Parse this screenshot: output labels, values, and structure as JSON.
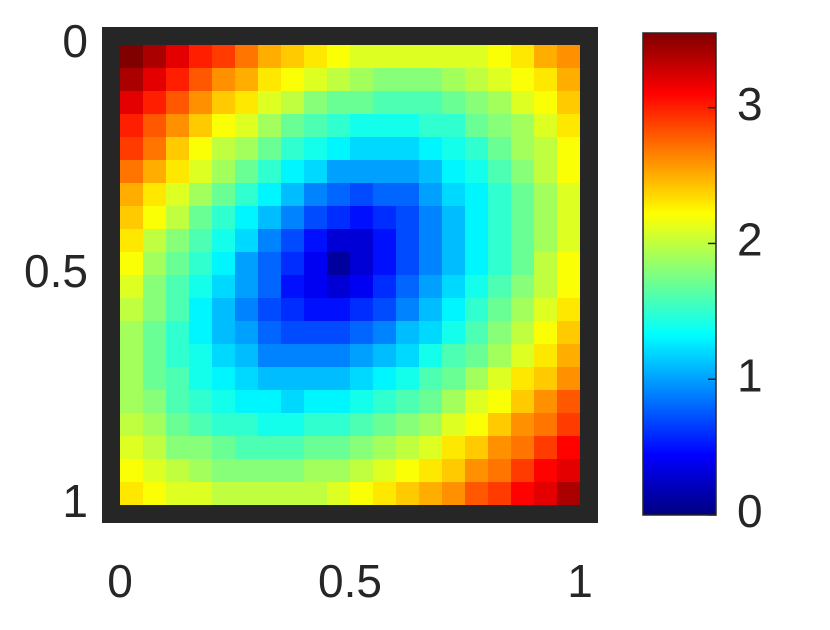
{
  "chart_data": {
    "type": "heatmap",
    "colormap": "jet",
    "ydir": "reverse",
    "xlim": [
      0,
      1
    ],
    "xticks": [
      0,
      0.5,
      1
    ],
    "ylim": [
      0,
      1
    ],
    "yticks": [
      0,
      0.5,
      1
    ],
    "clim": [
      0,
      3.55
    ],
    "cticks": [
      0,
      1,
      2,
      3
    ],
    "z": [
      [
        3.6,
        3.4,
        3.2,
        3.0,
        2.9,
        2.7,
        2.5,
        2.4,
        2.3,
        2.2,
        2.1,
        2.1,
        2.1,
        2.1,
        2.1,
        2.1,
        2.2,
        2.3,
        2.5,
        2.6
      ],
      [
        3.4,
        3.2,
        3.0,
        2.8,
        2.6,
        2.5,
        2.3,
        2.2,
        2.1,
        2.0,
        1.9,
        1.8,
        1.8,
        1.8,
        1.9,
        2.0,
        2.1,
        2.2,
        2.3,
        2.5
      ],
      [
        3.2,
        3.0,
        2.8,
        2.6,
        2.4,
        2.3,
        2.1,
        2.0,
        1.8,
        1.7,
        1.7,
        1.6,
        1.6,
        1.6,
        1.7,
        1.8,
        1.9,
        2.1,
        2.2,
        2.4
      ],
      [
        3.0,
        2.8,
        2.6,
        2.4,
        2.2,
        2.1,
        1.9,
        1.7,
        1.6,
        1.5,
        1.4,
        1.4,
        1.4,
        1.5,
        1.5,
        1.7,
        1.8,
        1.9,
        2.1,
        2.3
      ],
      [
        2.9,
        2.7,
        2.4,
        2.2,
        2.0,
        1.9,
        1.7,
        1.5,
        1.4,
        1.3,
        1.2,
        1.2,
        1.2,
        1.3,
        1.4,
        1.5,
        1.7,
        1.9,
        2.0,
        2.2
      ],
      [
        2.7,
        2.5,
        2.3,
        2.1,
        1.9,
        1.7,
        1.5,
        1.3,
        1.2,
        1.0,
        1.0,
        1.0,
        1.0,
        1.1,
        1.3,
        1.4,
        1.6,
        1.8,
        2.0,
        2.2
      ],
      [
        2.5,
        2.3,
        2.1,
        1.9,
        1.7,
        1.5,
        1.3,
        1.1,
        0.9,
        0.8,
        0.7,
        0.8,
        0.8,
        1.0,
        1.2,
        1.3,
        1.5,
        1.7,
        1.9,
        2.1
      ],
      [
        2.4,
        2.2,
        2.0,
        1.7,
        1.5,
        1.3,
        1.1,
        0.9,
        0.7,
        0.6,
        0.5,
        0.6,
        0.7,
        0.9,
        1.1,
        1.3,
        1.5,
        1.7,
        1.9,
        2.1
      ],
      [
        2.3,
        2.0,
        1.8,
        1.6,
        1.4,
        1.2,
        0.9,
        0.7,
        0.5,
        0.3,
        0.3,
        0.5,
        0.7,
        0.9,
        1.1,
        1.3,
        1.5,
        1.7,
        1.9,
        2.1
      ],
      [
        2.2,
        1.9,
        1.7,
        1.5,
        1.3,
        1.0,
        0.8,
        0.6,
        0.4,
        0.1,
        0.3,
        0.5,
        0.7,
        0.9,
        1.1,
        1.3,
        1.5,
        1.7,
        2.0,
        2.2
      ],
      [
        2.1,
        1.8,
        1.6,
        1.4,
        1.2,
        1.0,
        0.8,
        0.5,
        0.4,
        0.3,
        0.4,
        0.6,
        0.8,
        1.0,
        1.2,
        1.4,
        1.6,
        1.8,
        2.0,
        2.2
      ],
      [
        2.0,
        1.8,
        1.6,
        1.3,
        1.1,
        0.9,
        0.7,
        0.6,
        0.5,
        0.5,
        0.6,
        0.7,
        0.9,
        1.1,
        1.3,
        1.5,
        1.7,
        1.9,
        2.1,
        2.3
      ],
      [
        1.9,
        1.7,
        1.5,
        1.3,
        1.1,
        1.0,
        0.8,
        0.7,
        0.7,
        0.7,
        0.8,
        0.9,
        1.1,
        1.2,
        1.4,
        1.6,
        1.8,
        2.0,
        2.2,
        2.4
      ],
      [
        1.9,
        1.7,
        1.5,
        1.4,
        1.2,
        1.1,
        0.9,
        0.9,
        0.9,
        0.9,
        1.0,
        1.1,
        1.2,
        1.4,
        1.6,
        1.7,
        1.9,
        2.1,
        2.3,
        2.5
      ],
      [
        1.9,
        1.7,
        1.6,
        1.4,
        1.3,
        1.2,
        1.1,
        1.1,
        1.1,
        1.1,
        1.2,
        1.3,
        1.4,
        1.6,
        1.7,
        1.9,
        2.1,
        2.3,
        2.4,
        2.6
      ],
      [
        1.9,
        1.8,
        1.6,
        1.5,
        1.4,
        1.3,
        1.3,
        1.2,
        1.3,
        1.3,
        1.4,
        1.5,
        1.6,
        1.7,
        1.9,
        2.1,
        2.2,
        2.4,
        2.6,
        2.8
      ],
      [
        2.0,
        1.9,
        1.7,
        1.6,
        1.5,
        1.5,
        1.4,
        1.4,
        1.5,
        1.5,
        1.6,
        1.7,
        1.8,
        1.9,
        2.1,
        2.2,
        2.4,
        2.6,
        2.7,
        2.9
      ],
      [
        2.1,
        2.0,
        1.8,
        1.8,
        1.7,
        1.6,
        1.6,
        1.6,
        1.7,
        1.7,
        1.8,
        1.9,
        2.0,
        2.1,
        2.3,
        2.4,
        2.6,
        2.7,
        2.9,
        3.1
      ],
      [
        2.2,
        2.1,
        2.0,
        1.9,
        1.8,
        1.8,
        1.8,
        1.8,
        1.9,
        1.9,
        2.0,
        2.1,
        2.2,
        2.3,
        2.4,
        2.6,
        2.7,
        2.9,
        3.1,
        3.2
      ],
      [
        2.3,
        2.2,
        2.1,
        2.1,
        2.0,
        2.0,
        2.0,
        2.0,
        2.0,
        2.1,
        2.2,
        2.3,
        2.4,
        2.5,
        2.6,
        2.8,
        2.9,
        3.1,
        3.2,
        3.4
      ]
    ]
  }
}
